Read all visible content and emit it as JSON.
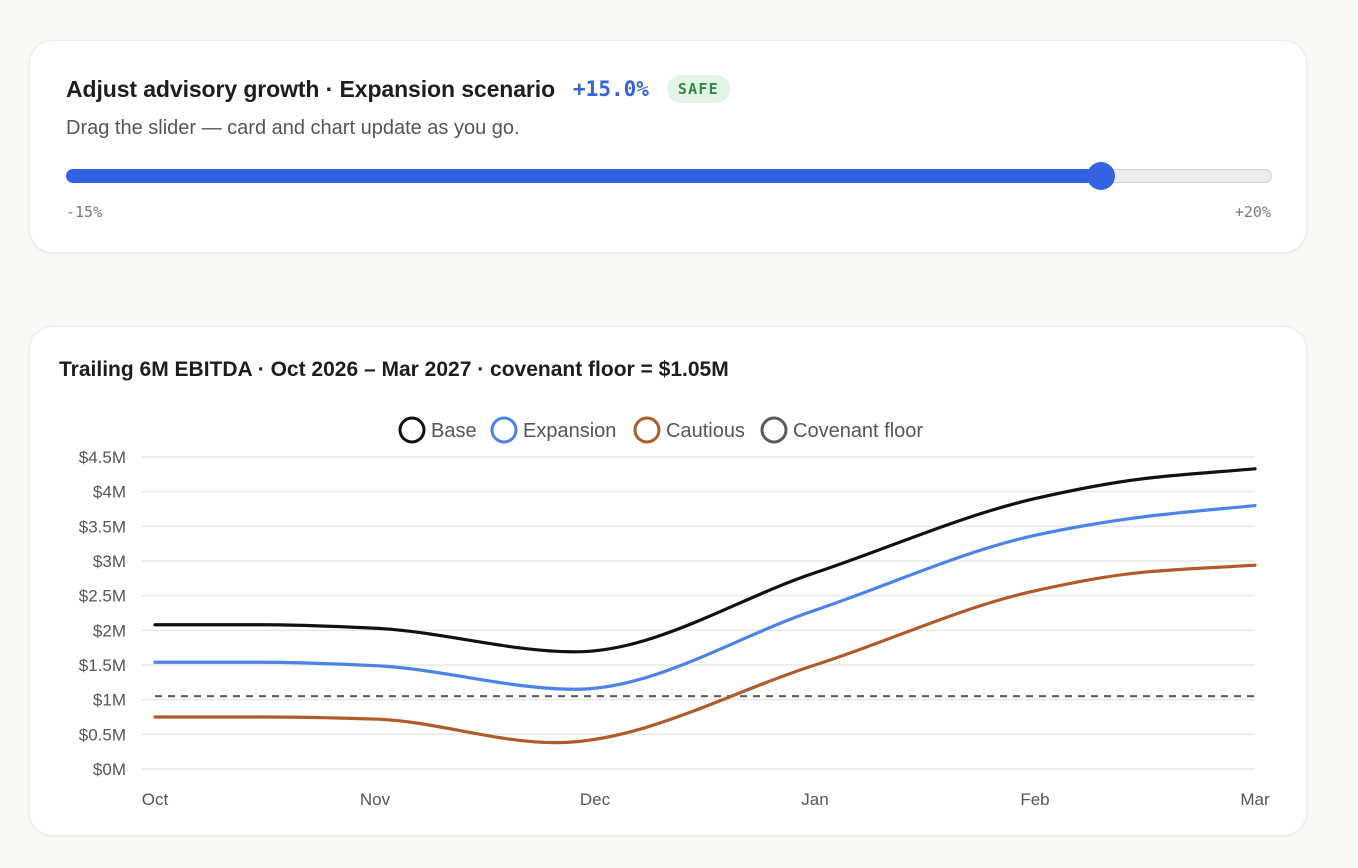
{
  "slider": {
    "title": "Adjust advisory growth · Expansion scenario",
    "value_label": "+15.0%",
    "badge": "SAFE",
    "subtitle": "Drag the slider — card and chart update as you go.",
    "min_label": "-15%",
    "max_label": "+20%",
    "min": -15,
    "max": 20,
    "value": 15,
    "accent_color": "#3562e0"
  },
  "chart": {
    "title": "Trailing 6M EBITDA · Oct 2026 – Mar 2027 · covenant floor = $1.05M"
  },
  "chart_data": {
    "type": "line",
    "categories": [
      "Oct",
      "Nov",
      "Dec",
      "Jan",
      "Feb",
      "Mar"
    ],
    "x": [
      0,
      1,
      2,
      3,
      4,
      5
    ],
    "ylim": [
      0,
      4.5
    ],
    "yticks": [
      0,
      0.5,
      1,
      1.5,
      2,
      2.5,
      3,
      3.5,
      4,
      4.5
    ],
    "ytick_labels": [
      "$0M",
      "$0.5M",
      "$1M",
      "$1.5M",
      "$2M",
      "$2.5M",
      "$3M",
      "$3.5M",
      "$4M",
      "$4.5M"
    ],
    "grid": true,
    "legend_position": "top-center",
    "series": [
      {
        "name": "Base",
        "color": "#111111",
        "dashed": false,
        "x": [
          0,
          0.5,
          1,
          1.91,
          3,
          4,
          4.5,
          5
        ],
        "values": [
          2.08,
          2.08,
          2.03,
          1.69,
          2.83,
          3.9,
          4.19,
          4.33
        ]
      },
      {
        "name": "Expansion",
        "color": "#4d82ea",
        "dashed": false,
        "x": [
          0,
          0.5,
          1,
          1.91,
          3,
          4,
          4.5,
          5
        ],
        "values": [
          1.54,
          1.54,
          1.49,
          1.15,
          2.29,
          3.37,
          3.64,
          3.8
        ]
      },
      {
        "name": "Cautious",
        "color": "#b05b2b",
        "dashed": false,
        "x": [
          0,
          0.5,
          1,
          1.82,
          3,
          4,
          4.5,
          5
        ],
        "values": [
          0.75,
          0.75,
          0.72,
          0.38,
          1.5,
          2.57,
          2.84,
          2.94
        ]
      },
      {
        "name": "Covenant floor",
        "color": "#5a5a60",
        "dashed": true,
        "x": [
          0,
          5
        ],
        "values": [
          1.05,
          1.05
        ]
      }
    ]
  }
}
